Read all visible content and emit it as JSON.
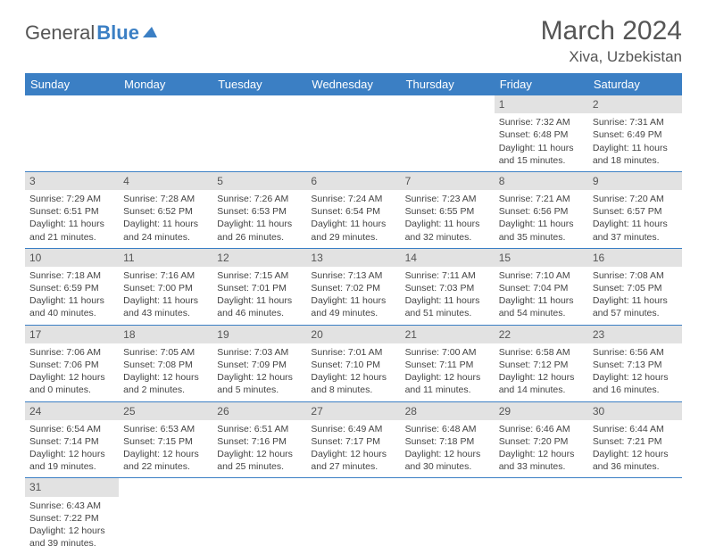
{
  "brand": {
    "general": "General",
    "blue": "Blue"
  },
  "title": "March 2024",
  "location": "Xiva, Uzbekistan",
  "weekdays": [
    "Sunday",
    "Monday",
    "Tuesday",
    "Wednesday",
    "Thursday",
    "Friday",
    "Saturday"
  ],
  "colors": {
    "header_bg": "#3b7fc4",
    "header_text": "#ffffff",
    "daynum_bg": "#e2e2e2",
    "cell_border": "#3b7fc4",
    "text": "#444444",
    "brand_blue": "#3b7fc4"
  },
  "layout": {
    "font_family": "Arial",
    "month_fontsize": 30,
    "location_fontsize": 17,
    "weekday_fontsize": 13,
    "cell_fontsize": 10.5
  },
  "weeks": [
    [
      null,
      null,
      null,
      null,
      null,
      {
        "n": "1",
        "sunrise": "Sunrise: 7:32 AM",
        "sunset": "Sunset: 6:48 PM",
        "daylight": "Daylight: 11 hours and 15 minutes."
      },
      {
        "n": "2",
        "sunrise": "Sunrise: 7:31 AM",
        "sunset": "Sunset: 6:49 PM",
        "daylight": "Daylight: 11 hours and 18 minutes."
      }
    ],
    [
      {
        "n": "3",
        "sunrise": "Sunrise: 7:29 AM",
        "sunset": "Sunset: 6:51 PM",
        "daylight": "Daylight: 11 hours and 21 minutes."
      },
      {
        "n": "4",
        "sunrise": "Sunrise: 7:28 AM",
        "sunset": "Sunset: 6:52 PM",
        "daylight": "Daylight: 11 hours and 24 minutes."
      },
      {
        "n": "5",
        "sunrise": "Sunrise: 7:26 AM",
        "sunset": "Sunset: 6:53 PM",
        "daylight": "Daylight: 11 hours and 26 minutes."
      },
      {
        "n": "6",
        "sunrise": "Sunrise: 7:24 AM",
        "sunset": "Sunset: 6:54 PM",
        "daylight": "Daylight: 11 hours and 29 minutes."
      },
      {
        "n": "7",
        "sunrise": "Sunrise: 7:23 AM",
        "sunset": "Sunset: 6:55 PM",
        "daylight": "Daylight: 11 hours and 32 minutes."
      },
      {
        "n": "8",
        "sunrise": "Sunrise: 7:21 AM",
        "sunset": "Sunset: 6:56 PM",
        "daylight": "Daylight: 11 hours and 35 minutes."
      },
      {
        "n": "9",
        "sunrise": "Sunrise: 7:20 AM",
        "sunset": "Sunset: 6:57 PM",
        "daylight": "Daylight: 11 hours and 37 minutes."
      }
    ],
    [
      {
        "n": "10",
        "sunrise": "Sunrise: 7:18 AM",
        "sunset": "Sunset: 6:59 PM",
        "daylight": "Daylight: 11 hours and 40 minutes."
      },
      {
        "n": "11",
        "sunrise": "Sunrise: 7:16 AM",
        "sunset": "Sunset: 7:00 PM",
        "daylight": "Daylight: 11 hours and 43 minutes."
      },
      {
        "n": "12",
        "sunrise": "Sunrise: 7:15 AM",
        "sunset": "Sunset: 7:01 PM",
        "daylight": "Daylight: 11 hours and 46 minutes."
      },
      {
        "n": "13",
        "sunrise": "Sunrise: 7:13 AM",
        "sunset": "Sunset: 7:02 PM",
        "daylight": "Daylight: 11 hours and 49 minutes."
      },
      {
        "n": "14",
        "sunrise": "Sunrise: 7:11 AM",
        "sunset": "Sunset: 7:03 PM",
        "daylight": "Daylight: 11 hours and 51 minutes."
      },
      {
        "n": "15",
        "sunrise": "Sunrise: 7:10 AM",
        "sunset": "Sunset: 7:04 PM",
        "daylight": "Daylight: 11 hours and 54 minutes."
      },
      {
        "n": "16",
        "sunrise": "Sunrise: 7:08 AM",
        "sunset": "Sunset: 7:05 PM",
        "daylight": "Daylight: 11 hours and 57 minutes."
      }
    ],
    [
      {
        "n": "17",
        "sunrise": "Sunrise: 7:06 AM",
        "sunset": "Sunset: 7:06 PM",
        "daylight": "Daylight: 12 hours and 0 minutes."
      },
      {
        "n": "18",
        "sunrise": "Sunrise: 7:05 AM",
        "sunset": "Sunset: 7:08 PM",
        "daylight": "Daylight: 12 hours and 2 minutes."
      },
      {
        "n": "19",
        "sunrise": "Sunrise: 7:03 AM",
        "sunset": "Sunset: 7:09 PM",
        "daylight": "Daylight: 12 hours and 5 minutes."
      },
      {
        "n": "20",
        "sunrise": "Sunrise: 7:01 AM",
        "sunset": "Sunset: 7:10 PM",
        "daylight": "Daylight: 12 hours and 8 minutes."
      },
      {
        "n": "21",
        "sunrise": "Sunrise: 7:00 AM",
        "sunset": "Sunset: 7:11 PM",
        "daylight": "Daylight: 12 hours and 11 minutes."
      },
      {
        "n": "22",
        "sunrise": "Sunrise: 6:58 AM",
        "sunset": "Sunset: 7:12 PM",
        "daylight": "Daylight: 12 hours and 14 minutes."
      },
      {
        "n": "23",
        "sunrise": "Sunrise: 6:56 AM",
        "sunset": "Sunset: 7:13 PM",
        "daylight": "Daylight: 12 hours and 16 minutes."
      }
    ],
    [
      {
        "n": "24",
        "sunrise": "Sunrise: 6:54 AM",
        "sunset": "Sunset: 7:14 PM",
        "daylight": "Daylight: 12 hours and 19 minutes."
      },
      {
        "n": "25",
        "sunrise": "Sunrise: 6:53 AM",
        "sunset": "Sunset: 7:15 PM",
        "daylight": "Daylight: 12 hours and 22 minutes."
      },
      {
        "n": "26",
        "sunrise": "Sunrise: 6:51 AM",
        "sunset": "Sunset: 7:16 PM",
        "daylight": "Daylight: 12 hours and 25 minutes."
      },
      {
        "n": "27",
        "sunrise": "Sunrise: 6:49 AM",
        "sunset": "Sunset: 7:17 PM",
        "daylight": "Daylight: 12 hours and 27 minutes."
      },
      {
        "n": "28",
        "sunrise": "Sunrise: 6:48 AM",
        "sunset": "Sunset: 7:18 PM",
        "daylight": "Daylight: 12 hours and 30 minutes."
      },
      {
        "n": "29",
        "sunrise": "Sunrise: 6:46 AM",
        "sunset": "Sunset: 7:20 PM",
        "daylight": "Daylight: 12 hours and 33 minutes."
      },
      {
        "n": "30",
        "sunrise": "Sunrise: 6:44 AM",
        "sunset": "Sunset: 7:21 PM",
        "daylight": "Daylight: 12 hours and 36 minutes."
      }
    ],
    [
      {
        "n": "31",
        "sunrise": "Sunrise: 6:43 AM",
        "sunset": "Sunset: 7:22 PM",
        "daylight": "Daylight: 12 hours and 39 minutes."
      },
      null,
      null,
      null,
      null,
      null,
      null
    ]
  ]
}
